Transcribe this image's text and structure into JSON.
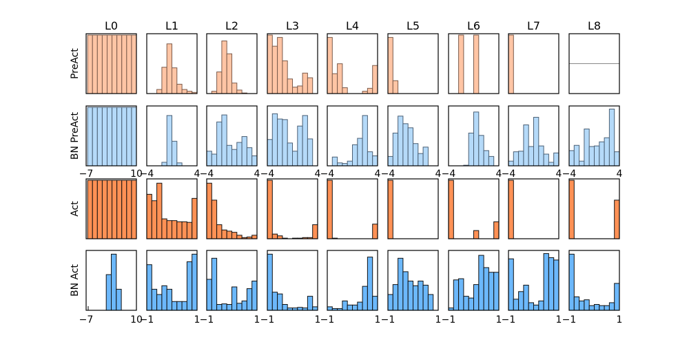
{
  "chart_data": {
    "type": "histogram-grid",
    "title": "",
    "columns": [
      "L0",
      "L1",
      "L2",
      "L3",
      "L4",
      "L5",
      "L6",
      "L7",
      "L8"
    ],
    "rows": [
      {
        "label": "PreAct",
        "color": "#ffc5a5",
        "edge": "#7a5a4a",
        "xlim": [
          -4,
          4
        ]
      },
      {
        "label": "BN PreAct",
        "color": "#b5daf9",
        "edge": "#4a5f74",
        "xlim": [
          -4,
          4
        ]
      },
      {
        "label": "Act",
        "color": "#ff9155",
        "edge": "#111111",
        "xlim": [
          -1,
          1
        ]
      },
      {
        "label": "BN Act",
        "color": "#6cb8fb",
        "edge": "#111111",
        "xlim": [
          -1,
          1
        ]
      }
    ],
    "first_column_xlim": [
      -7,
      10
    ],
    "tick_labels": {
      "row2_bottom": [
        "-7",
        "10",
        "-4",
        "4",
        "-4",
        "4",
        "-4",
        "4",
        "-4",
        "4",
        "-4",
        "4",
        "-4",
        "4",
        "-4",
        "4",
        "-4",
        "4"
      ],
      "row4_bottom": [
        "-7",
        "10",
        "-1",
        "1",
        "-1",
        "1",
        "-1",
        "1",
        "-1",
        "1",
        "-1",
        "1",
        "-1",
        "1",
        "-1",
        "1",
        "-1",
        "1"
      ]
    },
    "note": "Heights are relative (fraction of panel max); no y-axis ticks shown.",
    "panels": [
      [
        {
          "range": [
            -6.5,
            10
          ],
          "values": [
            1,
            1,
            1,
            1,
            1,
            1,
            1,
            1,
            1,
            1
          ]
        },
        {
          "range": [
            -4,
            4
          ],
          "values": [
            0.0,
            0.0,
            0.07,
            0.45,
            0.85,
            0.44,
            0.16,
            0.07,
            0.04,
            0.02
          ]
        },
        {
          "range": [
            -4,
            4
          ],
          "values": [
            0.0,
            0.04,
            0.37,
            0.9,
            0.68,
            0.18,
            0.06,
            0.01,
            0.0,
            0.0
          ]
        },
        {
          "range": [
            -4,
            4
          ],
          "values": [
            1.0,
            0.81,
            0.96,
            0.56,
            0.25,
            0.11,
            0.13,
            0.35,
            0.27,
            0.0
          ]
        },
        {
          "range": [
            -4,
            4
          ],
          "values": [
            0.96,
            0.34,
            0.51,
            0.1,
            0.0,
            0.0,
            0.0,
            0.04,
            0.09,
            0.48
          ]
        },
        {
          "range": [
            -4,
            4
          ],
          "values": [
            0.96,
            0.22,
            0,
            0,
            0,
            0,
            0,
            0,
            0,
            0
          ]
        },
        {
          "range": [
            -4,
            4
          ],
          "values": [
            0.0,
            0.0,
            1.0,
            0.0,
            0.0,
            1.0,
            0.0,
            0.0,
            0.0,
            0.0
          ]
        },
        {
          "range": [
            -4,
            4
          ],
          "values": [
            1.0,
            0,
            0,
            0,
            0,
            0,
            0,
            0,
            0,
            0
          ]
        },
        {
          "flat_line": 0.5
        }
      ],
      [
        {
          "range": [
            -6.5,
            10
          ],
          "values": [
            1,
            1,
            1,
            1,
            1,
            1,
            1,
            1,
            1,
            1
          ]
        },
        {
          "range": [
            -4,
            4
          ],
          "values": [
            0.0,
            0.0,
            0.0,
            0.06,
            0.86,
            0.42,
            0.05,
            0.0,
            0.0,
            0.0
          ]
        },
        {
          "range": [
            -4,
            4
          ],
          "values": [
            0.25,
            0.2,
            0.75,
            0.87,
            0.35,
            0.28,
            0.4,
            0.5,
            0.31,
            0.17
          ]
        },
        {
          "range": [
            -4,
            4
          ],
          "values": [
            0.45,
            0.89,
            0.8,
            0.79,
            0.39,
            0.25,
            0.68,
            0.86,
            0.46,
            0.0
          ]
        },
        {
          "range": [
            -4,
            4
          ],
          "values": [
            0.0,
            0.15,
            0.05,
            0.04,
            0.08,
            0.36,
            0.47,
            0.86,
            0.24,
            0.17
          ]
        },
        {
          "range": [
            -4,
            4
          ],
          "values": [
            0.16,
            0.56,
            0.85,
            0.72,
            0.65,
            0.38,
            0.21,
            0.32,
            0.0,
            0.0
          ]
        },
        {
          "range": [
            -4,
            4
          ],
          "values": [
            0.0,
            0.0,
            0.0,
            0.01,
            0.56,
            0.92,
            0.52,
            0.26,
            0.16,
            0.0
          ]
        },
        {
          "range": [
            -4,
            4
          ],
          "values": [
            0.08,
            0.24,
            0.25,
            0.7,
            0.33,
            0.83,
            0.34,
            0.2,
            0.06,
            0.22
          ]
        },
        {
          "range": [
            -4,
            4
          ],
          "values": [
            0.26,
            0.35,
            0.08,
            0.63,
            0.33,
            0.34,
            0.41,
            0.48,
            0.97,
            0.24
          ]
        }
      ],
      [
        {
          "range": [
            -6.5,
            10
          ],
          "values": [
            1,
            1,
            1,
            1,
            1,
            1,
            1,
            1,
            1,
            1
          ]
        },
        {
          "range": [
            -1,
            1
          ],
          "values": [
            0.76,
            0.65,
            0.95,
            0.34,
            0.31,
            0.31,
            0.29,
            0.29,
            0.28,
            0.69
          ]
        },
        {
          "range": [
            -1,
            1
          ],
          "values": [
            0.95,
            0.66,
            0.24,
            0.15,
            0.13,
            0.11,
            0.06,
            0.02,
            0.03,
            0.06
          ]
        },
        {
          "range": [
            -1,
            1
          ],
          "values": [
            1.0,
            0.08,
            0.05,
            0.01,
            0.0,
            0.01,
            0.01,
            0.02,
            0.02,
            0.24
          ]
        },
        {
          "range": [
            -1,
            1
          ],
          "values": [
            1.0,
            0.01,
            0,
            0,
            0,
            0,
            0,
            0,
            0,
            0.25
          ]
        },
        {
          "range": [
            -1,
            1
          ],
          "values": [
            1.0,
            0,
            0,
            0,
            0,
            0,
            0,
            0,
            0,
            0
          ]
        },
        {
          "range": [
            -1,
            1
          ],
          "values": [
            1.0,
            0,
            0,
            0,
            0,
            0.14,
            0,
            0.0,
            0,
            0.29
          ]
        },
        {
          "range": [
            -1,
            1
          ],
          "values": [
            1.0,
            0,
            0,
            0,
            0,
            0,
            0,
            0,
            0,
            0
          ]
        },
        {
          "range": [
            -1,
            1
          ],
          "values": [
            1.0,
            0,
            0,
            0,
            0,
            0,
            0,
            0,
            0,
            0.66
          ]
        }
      ],
      [
        {
          "range": [
            -7,
            10
          ],
          "values": [
            0,
            0,
            0,
            0,
            0.61,
            0.96,
            0.36,
            0,
            0,
            0
          ],
          "has_left_tick": true
        },
        {
          "range": [
            -1,
            1
          ],
          "values": [
            0.78,
            0.36,
            0.27,
            0.42,
            0.36,
            0.15,
            0.15,
            0.15,
            0.83,
            0.96
          ]
        },
        {
          "range": [
            -1,
            1
          ],
          "values": [
            0.53,
            0.89,
            0.1,
            0.11,
            0.1,
            0.4,
            0.12,
            0.16,
            0.37,
            0.5
          ]
        },
        {
          "range": [
            -1,
            1
          ],
          "values": [
            0.96,
            0.31,
            0.28,
            0.1,
            0.04,
            0.04,
            0.05,
            0.04,
            0.24,
            0.06
          ]
        },
        {
          "range": [
            -1,
            1
          ],
          "values": [
            0.06,
            0.03,
            0.03,
            0.16,
            0.09,
            0.09,
            0.14,
            0.41,
            0.91,
            0.24
          ]
        },
        {
          "range": [
            -1,
            1
          ],
          "values": [
            0.27,
            0.44,
            0.89,
            0.66,
            0.5,
            0.42,
            0.5,
            0.43,
            0.27,
            0.0
          ]
        },
        {
          "range": [
            -1,
            1
          ],
          "values": [
            0.04,
            0.52,
            0.54,
            0.24,
            0.21,
            0.44,
            0.94,
            0.73,
            0.65,
            0.65
          ]
        },
        {
          "range": [
            -1,
            1
          ],
          "values": [
            0.88,
            0.19,
            0.32,
            0.43,
            0.13,
            0.09,
            0.16,
            0.97,
            0.9,
            0.86
          ]
        },
        {
          "range": [
            -1,
            1
          ],
          "values": [
            0.96,
            0.23,
            0.16,
            0.18,
            0.08,
            0.1,
            0.08,
            0.08,
            0.13,
            0.46
          ]
        }
      ]
    ]
  }
}
